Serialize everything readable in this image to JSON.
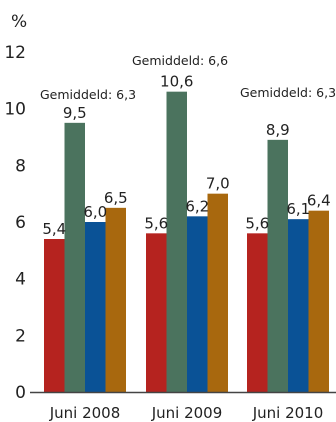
{
  "chart_data": {
    "type": "bar",
    "unit_label": "%",
    "ylim": [
      0,
      12
    ],
    "yticks": [
      "0",
      "2",
      "4",
      "6",
      "8",
      "10",
      "12"
    ],
    "grid": false,
    "categories": [
      "Juni 2008",
      "Juni 2009",
      "Juni 2010"
    ],
    "series": [
      {
        "color": "#b5231f",
        "values": [
          5.4,
          5.6,
          5.6
        ],
        "labels": [
          "5,4",
          "5,6",
          "5,6"
        ]
      },
      {
        "color": "#4b735e",
        "values": [
          9.5,
          10.6,
          8.9
        ],
        "labels": [
          "9,5",
          "10,6",
          "8,9"
        ]
      },
      {
        "color": "#0a5296",
        "values": [
          6.0,
          6.2,
          6.1
        ],
        "labels": [
          "6,0",
          "6,2",
          "6,1"
        ]
      },
      {
        "color": "#a8680e",
        "values": [
          6.5,
          7.0,
          6.4
        ],
        "labels": [
          "6,5",
          "7,0",
          "6,4"
        ]
      }
    ],
    "averages": [
      {
        "category": "Juni 2008",
        "value": 6.3,
        "text": "Gemiddeld: 6,3"
      },
      {
        "category": "Juni 2009",
        "value": 6.6,
        "text": "Gemiddeld: 6,6"
      },
      {
        "category": "Juni 2010",
        "value": 6.3,
        "text": "Gemiddeld: 6,3"
      }
    ]
  }
}
